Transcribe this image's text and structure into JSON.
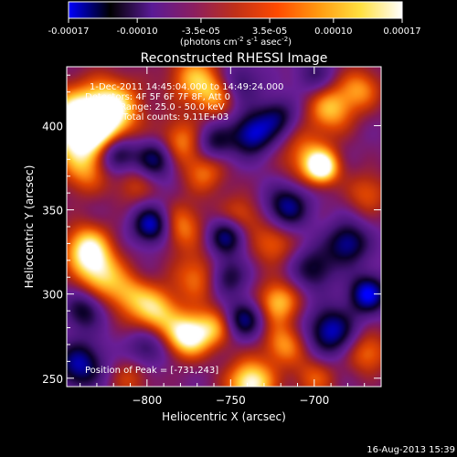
{
  "colorbar": {
    "ticks": [
      "-0.00017",
      "-0.00010",
      "-3.5e-05",
      "3.5e-05",
      "0.00010",
      "0.00017"
    ],
    "unit_label_pre": "(photons cm",
    "unit_sup1": "-2",
    "unit_mid": " s",
    "unit_sup2": "-1",
    "unit_mid2": " asec",
    "unit_sup3": "-2",
    "unit_post": ")",
    "range": [
      -0.00017,
      0.00017
    ],
    "colors": [
      "#0000ff",
      "#000000",
      "#5a1a96",
      "#8b1e60",
      "#c03018",
      "#ff4a00",
      "#ff9a10",
      "#ffe040",
      "#ffffff"
    ]
  },
  "chart_data": {
    "type": "heatmap",
    "title": "Reconstructed RHESSI Image",
    "xlabel": "Heliocentric X (arcsec)",
    "ylabel": "Heliocentric Y (arcsec)",
    "xlim": [
      -848,
      -660
    ],
    "ylim": [
      245,
      435
    ],
    "xticks": [
      {
        "value": -800,
        "label": "−800"
      },
      {
        "value": -750,
        "label": "−750"
      },
      {
        "value": -700,
        "label": "−700"
      }
    ],
    "yticks": [
      {
        "value": 400,
        "label": "400"
      },
      {
        "value": 350,
        "label": "350"
      },
      {
        "value": 300,
        "label": "300"
      },
      {
        "value": 250,
        "label": "250"
      }
    ],
    "annotations": [
      "1-Dec-2011 14:45:04.000 to 14:49:24.000",
      "Detectors: 4F 5F 6F 7F 8F, Att 0",
      "Energy Range: 25.0 - 50.0 keV",
      "Clean    Total counts: 9.11E+03"
    ],
    "peak_label": "Position of Peak = [-731,243]",
    "peak": [
      -731,
      243
    ],
    "sources": [
      {
        "x": -843,
        "y": 402,
        "amp": 1.0,
        "r": 14
      },
      {
        "x": -820,
        "y": 412,
        "amp": 0.75,
        "r": 12
      },
      {
        "x": -830,
        "y": 395,
        "amp": 0.7,
        "r": 13
      },
      {
        "x": -838,
        "y": 372,
        "amp": 0.45,
        "r": 10
      },
      {
        "x": -772,
        "y": 428,
        "amp": 0.65,
        "r": 11
      },
      {
        "x": -758,
        "y": 418,
        "amp": 0.55,
        "r": 9
      },
      {
        "x": -690,
        "y": 410,
        "amp": 0.7,
        "r": 10
      },
      {
        "x": -672,
        "y": 422,
        "amp": 0.55,
        "r": 9
      },
      {
        "x": -695,
        "y": 375,
        "amp": 0.95,
        "r": 7
      },
      {
        "x": -705,
        "y": 382,
        "amp": 0.55,
        "r": 11
      },
      {
        "x": -668,
        "y": 360,
        "amp": 0.45,
        "r": 9
      },
      {
        "x": -780,
        "y": 390,
        "amp": 0.6,
        "r": 10
      },
      {
        "x": -765,
        "y": 372,
        "amp": 0.5,
        "r": 9
      },
      {
        "x": -808,
        "y": 365,
        "amp": 0.35,
        "r": 9
      },
      {
        "x": -836,
        "y": 327,
        "amp": 0.9,
        "r": 10
      },
      {
        "x": -828,
        "y": 312,
        "amp": 0.7,
        "r": 10
      },
      {
        "x": -812,
        "y": 300,
        "amp": 0.55,
        "r": 9
      },
      {
        "x": -780,
        "y": 340,
        "amp": 0.6,
        "r": 10
      },
      {
        "x": -770,
        "y": 310,
        "amp": 0.55,
        "r": 10
      },
      {
        "x": -745,
        "y": 345,
        "amp": 0.55,
        "r": 9
      },
      {
        "x": -725,
        "y": 330,
        "amp": 0.5,
        "r": 9
      },
      {
        "x": -795,
        "y": 290,
        "amp": 0.8,
        "r": 10
      },
      {
        "x": -776,
        "y": 275,
        "amp": 1.0,
        "r": 9
      },
      {
        "x": -760,
        "y": 280,
        "amp": 0.6,
        "r": 9
      },
      {
        "x": -722,
        "y": 295,
        "amp": 0.75,
        "r": 9
      },
      {
        "x": -718,
        "y": 270,
        "amp": 0.6,
        "r": 9
      },
      {
        "x": -738,
        "y": 247,
        "amp": 1.0,
        "r": 10
      },
      {
        "x": -700,
        "y": 250,
        "amp": 0.45,
        "r": 9
      },
      {
        "x": -668,
        "y": 265,
        "amp": 0.55,
        "r": 9
      },
      {
        "x": -810,
        "y": 250,
        "amp": 0.35,
        "r": 9
      },
      {
        "x": -795,
        "y": 380,
        "amp": -0.8,
        "r": 8
      },
      {
        "x": -818,
        "y": 383,
        "amp": -0.9,
        "r": 8
      },
      {
        "x": -797,
        "y": 341,
        "amp": -1.0,
        "r": 8
      },
      {
        "x": -760,
        "y": 390,
        "amp": -0.6,
        "r": 8
      },
      {
        "x": -737,
        "y": 395,
        "amp": -0.9,
        "r": 9
      },
      {
        "x": -722,
        "y": 405,
        "amp": -0.6,
        "r": 8
      },
      {
        "x": -752,
        "y": 335,
        "amp": -0.9,
        "r": 8
      },
      {
        "x": -716,
        "y": 352,
        "amp": -0.8,
        "r": 9
      },
      {
        "x": -680,
        "y": 330,
        "amp": -0.8,
        "r": 9
      },
      {
        "x": -668,
        "y": 300,
        "amp": -1.0,
        "r": 8
      },
      {
        "x": -690,
        "y": 278,
        "amp": -0.9,
        "r": 10
      },
      {
        "x": -840,
        "y": 258,
        "amp": -0.85,
        "r": 10
      },
      {
        "x": -800,
        "y": 268,
        "amp": -0.5,
        "r": 8
      },
      {
        "x": -742,
        "y": 285,
        "amp": -0.8,
        "r": 8
      },
      {
        "x": -752,
        "y": 310,
        "amp": -0.6,
        "r": 8
      },
      {
        "x": -700,
        "y": 315,
        "amp": -0.6,
        "r": 9
      },
      {
        "x": -745,
        "y": 425,
        "amp": -0.5,
        "r": 9
      },
      {
        "x": -838,
        "y": 290,
        "amp": -0.6,
        "r": 8
      },
      {
        "x": -700,
        "y": 430,
        "amp": -0.4,
        "r": 8
      }
    ]
  },
  "footer": {
    "date": "16-Aug-2013 15:39"
  }
}
